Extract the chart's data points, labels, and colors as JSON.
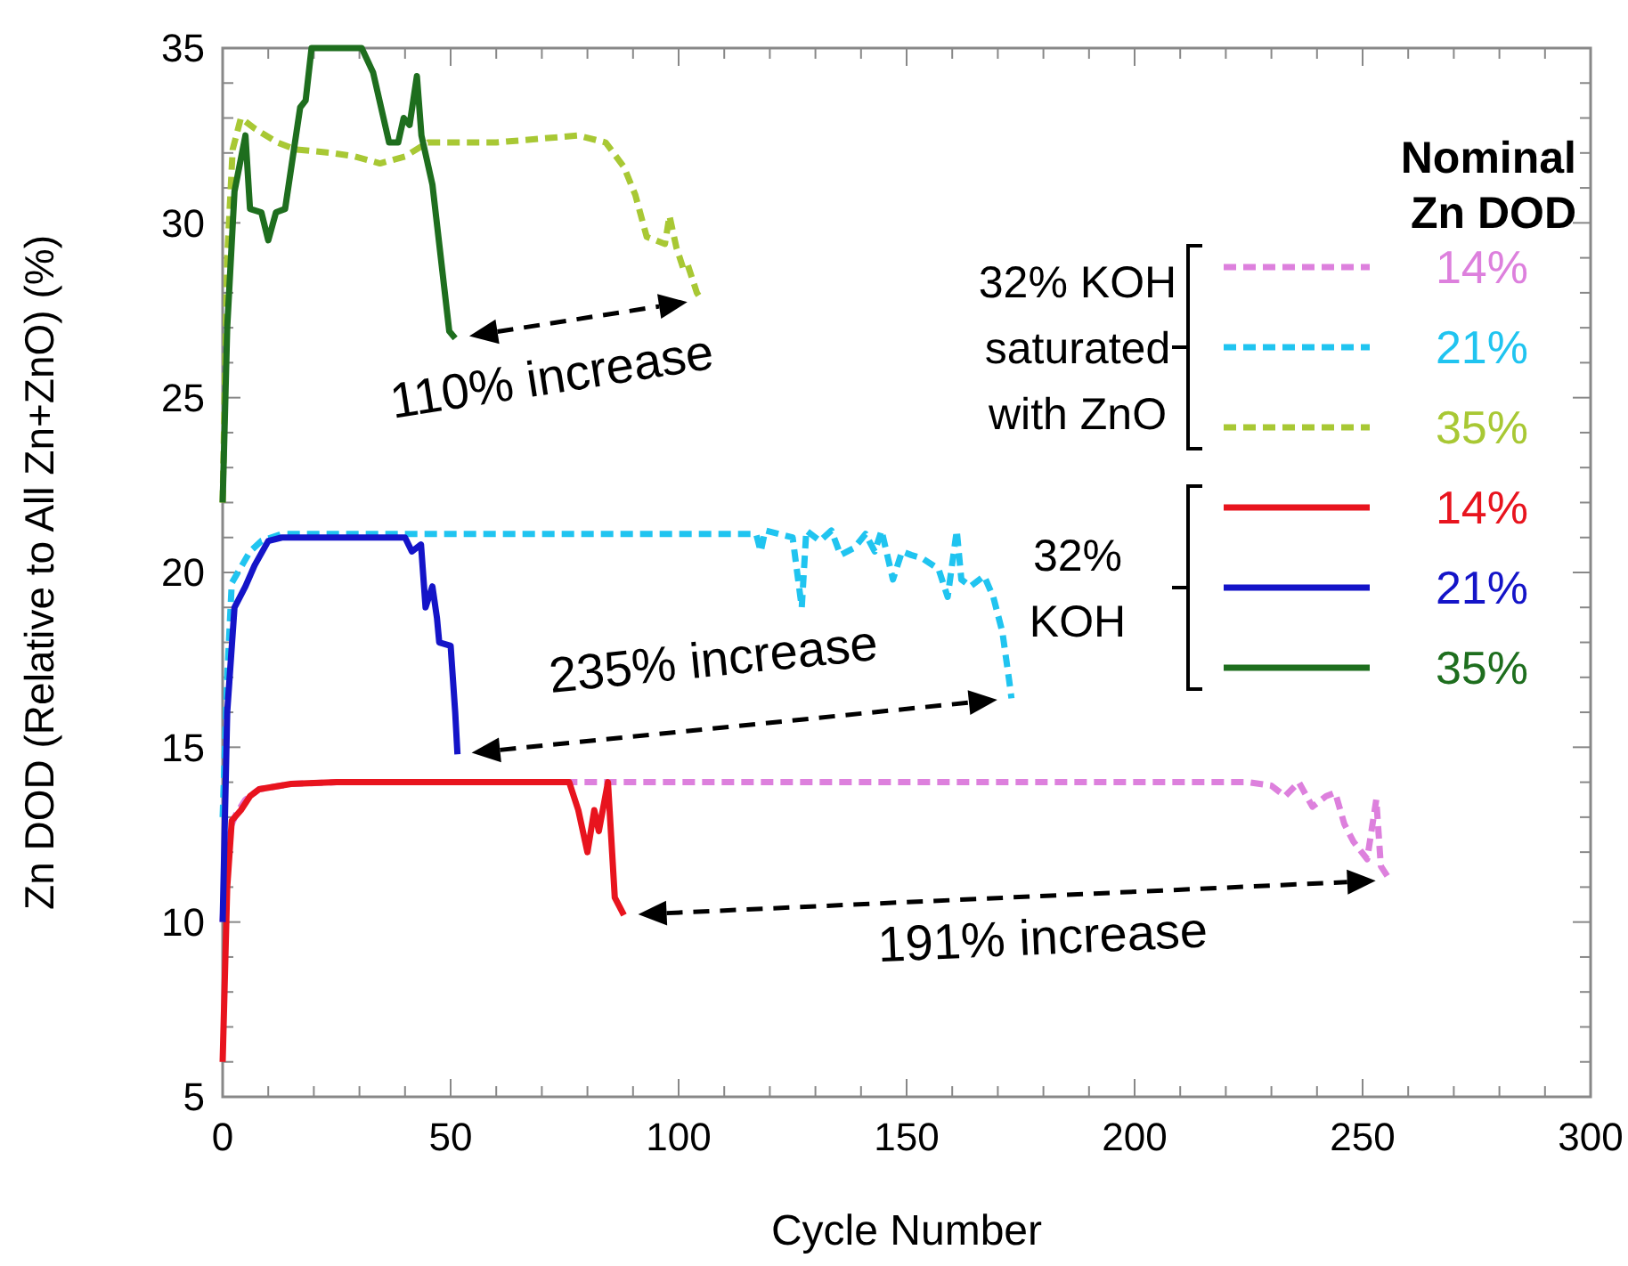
{
  "chart_data": {
    "type": "line",
    "xlabel": "Cycle Number",
    "ylabel": "Zn DOD (Relative to All Zn+ZnO) (%)",
    "legend_title": "Nominal Zn DOD",
    "legend": "top right",
    "marker": "none",
    "grid": false,
    "xlim": [
      0,
      300
    ],
    "ylim": [
      5,
      35
    ],
    "xticks": [
      0,
      {
        "value": 10,
        "label": null
      },
      {
        "value": 20,
        "label": null
      },
      {
        "value": 30,
        "label": null
      },
      {
        "value": 40,
        "label": null
      },
      50,
      {
        "value": 60,
        "label": null
      },
      {
        "value": 70,
        "label": null
      },
      {
        "value": 80,
        "label": null
      },
      {
        "value": 90,
        "label": null
      },
      100,
      {
        "value": 110,
        "label": null
      },
      {
        "value": 120,
        "label": null
      },
      {
        "value": 130,
        "label": null
      },
      {
        "value": 140,
        "label": null
      },
      150,
      {
        "value": 160,
        "label": null
      },
      {
        "value": 170,
        "label": null
      },
      {
        "value": 180,
        "label": null
      },
      {
        "value": 190,
        "label": null
      },
      200,
      {
        "value": 210,
        "label": null
      },
      {
        "value": 220,
        "label": null
      },
      {
        "value": 230,
        "label": null
      },
      {
        "value": 240,
        "label": null
      },
      250,
      {
        "value": 260,
        "label": null
      },
      {
        "value": 270,
        "label": null
      },
      {
        "value": 280,
        "label": null
      },
      {
        "value": 290,
        "label": null
      },
      300
    ],
    "yticks": [
      5,
      {
        "value": 6,
        "label": null
      },
      {
        "value": 7,
        "label": null
      },
      {
        "value": 8,
        "label": null
      },
      {
        "value": 9,
        "label": null
      },
      10,
      {
        "value": 11,
        "label": null
      },
      {
        "value": 12,
        "label": null
      },
      {
        "value": 13,
        "label": null
      },
      {
        "value": 14,
        "label": null
      },
      15,
      {
        "value": 16,
        "label": null
      },
      {
        "value": 17,
        "label": null
      },
      {
        "value": 18,
        "label": null
      },
      {
        "value": 19,
        "label": null
      },
      20,
      {
        "value": 21,
        "label": null
      },
      {
        "value": 22,
        "label": null
      },
      {
        "value": 23,
        "label": null
      },
      {
        "value": 24,
        "label": null
      },
      25,
      {
        "value": 26,
        "label": null
      },
      {
        "value": 27,
        "label": null
      },
      {
        "value": 28,
        "label": null
      },
      {
        "value": 29,
        "label": null
      },
      30,
      {
        "value": 31,
        "label": null
      },
      {
        "value": 32,
        "label": null
      },
      {
        "value": 33,
        "label": null
      },
      {
        "value": 34,
        "label": null
      },
      35
    ],
    "series": [
      {
        "name": "14%",
        "color": "#dd80dd",
        "line_style": "dashed",
        "x": [
          0,
          1,
          3,
          5,
          8,
          15,
          25,
          100,
          200,
          225,
          230,
          233,
          236,
          239,
          242,
          244,
          246,
          248,
          251,
          253,
          254,
          256
        ],
        "values": [
          10,
          12.5,
          13.1,
          13.5,
          13.8,
          13.95,
          14,
          14,
          14,
          14,
          13.9,
          13.6,
          14,
          13.3,
          13.6,
          13.7,
          12.8,
          12.3,
          11.8,
          13.5,
          11.6,
          11.2
        ]
      },
      {
        "name": "21%",
        "color": "#20c4f0",
        "line_style": "dashed",
        "x": [
          0,
          1,
          2,
          6,
          8.5,
          13,
          50,
          100,
          117,
          118,
          119,
          125,
          127,
          128,
          131,
          133.5,
          135.5,
          138.5,
          141,
          143,
          144.5,
          147,
          149,
          151,
          153.5,
          157,
          159,
          161,
          162,
          164,
          167,
          169,
          171,
          172.5,
          173
        ],
        "values": [
          13,
          17,
          19.7,
          20.6,
          20.9,
          21.1,
          21.1,
          21.1,
          21.1,
          20.6,
          21.2,
          21,
          19,
          21.2,
          20.9,
          21.2,
          20.5,
          20.7,
          21.1,
          20.6,
          21.2,
          19.8,
          20.6,
          20.5,
          20.4,
          20.1,
          19.3,
          21.2,
          19.8,
          19.6,
          19.9,
          19.3,
          18.3,
          16.9,
          16.4
        ]
      },
      {
        "name": "35%",
        "color": "#a8c834",
        "line_style": "dashed",
        "x": [
          0,
          1,
          2.2,
          4,
          7,
          12,
          16,
          24,
          29,
          34.5,
          40,
          45,
          60,
          78,
          84,
          88,
          90.5,
          93,
          97,
          98,
          99.5,
          101,
          102,
          104,
          105
        ],
        "values": [
          22,
          29,
          32.1,
          33,
          32.7,
          32.3,
          32.1,
          32,
          31.9,
          31.7,
          31.9,
          32.3,
          32.3,
          32.5,
          32.3,
          31.6,
          30.8,
          29.6,
          29.4,
          30.2,
          29.3,
          28.7,
          28.8,
          28,
          27.8
        ]
      },
      {
        "name": "14%",
        "color": "#e8141e",
        "line_style": "solid",
        "x": [
          0,
          1,
          2,
          4,
          6,
          8,
          15,
          25,
          50,
          76,
          78,
          80,
          81.5,
          82.5,
          84.5,
          86,
          88
        ],
        "values": [
          6,
          11,
          12.9,
          13.2,
          13.6,
          13.8,
          13.95,
          14,
          14,
          14,
          13.2,
          12,
          13.2,
          12.6,
          14,
          10.7,
          10.2
        ]
      },
      {
        "name": "21%",
        "color": "#1414c8",
        "line_style": "solid",
        "x": [
          0,
          1,
          2.6,
          5,
          7,
          10,
          13,
          40,
          41.5,
          43.5,
          44.5,
          46,
          47,
          47.5,
          50,
          51,
          51.5
        ],
        "values": [
          10,
          16,
          19,
          19.6,
          20.2,
          20.9,
          21,
          21,
          20.6,
          20.8,
          19,
          19.6,
          18.7,
          18,
          17.9,
          16,
          14.8
        ]
      },
      {
        "name": "35%",
        "color": "#1e6e1e",
        "line_style": "solid",
        "x": [
          0,
          1,
          2.6,
          5,
          6,
          8.5,
          10,
          11.7,
          13.7,
          17,
          18.2,
          19.5,
          30.5,
          33,
          36.5,
          38.5,
          39.7,
          41,
          42.6,
          43.6,
          46,
          49.7,
          51
        ],
        "values": [
          22,
          27,
          30.9,
          32.5,
          30.4,
          30.3,
          29.5,
          30.3,
          30.4,
          33.3,
          33.5,
          35,
          35,
          34.3,
          32.3,
          32.3,
          33,
          32.8,
          34.2,
          32.5,
          31.1,
          26.9,
          26.7
        ]
      }
    ],
    "annotations": [
      "110% increase",
      "235% increase",
      "191% increase",
      "32% KOH saturated with ZnO",
      "32% KOH"
    ]
  }
}
